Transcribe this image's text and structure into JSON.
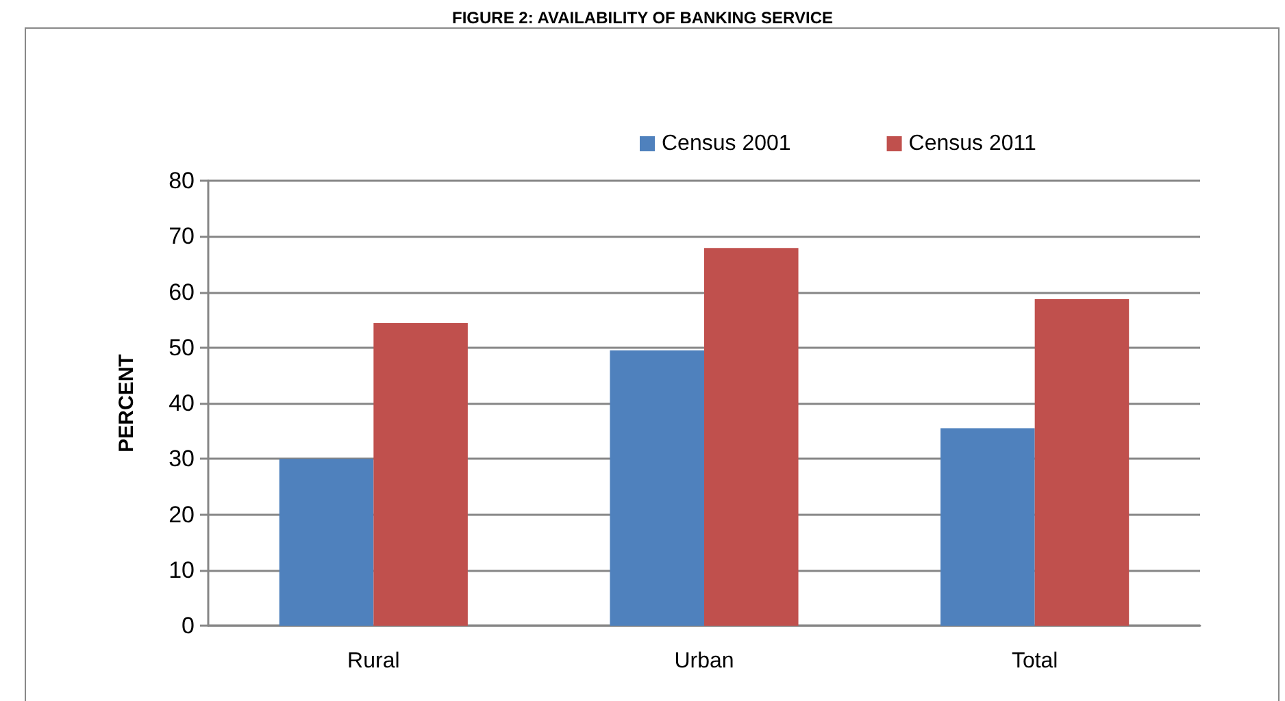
{
  "chart_data": {
    "type": "bar",
    "title": "FIGURE 2: AVAILABILITY OF BANKING SERVICE",
    "ylabel": "PERCENT",
    "categories": [
      "Rural",
      "Urban",
      "Total"
    ],
    "series": [
      {
        "name": "Census 2001",
        "color": "#4f81bd",
        "values": [
          30.0,
          49.5,
          35.5
        ]
      },
      {
        "name": "Census 2011",
        "color": "#c0504d",
        "values": [
          54.4,
          67.9,
          58.7
        ]
      }
    ],
    "ylim": [
      0,
      80
    ],
    "yticks": [
      0,
      10,
      20,
      30,
      40,
      50,
      60,
      70,
      80
    ],
    "grid": "y",
    "legend": "top right"
  }
}
